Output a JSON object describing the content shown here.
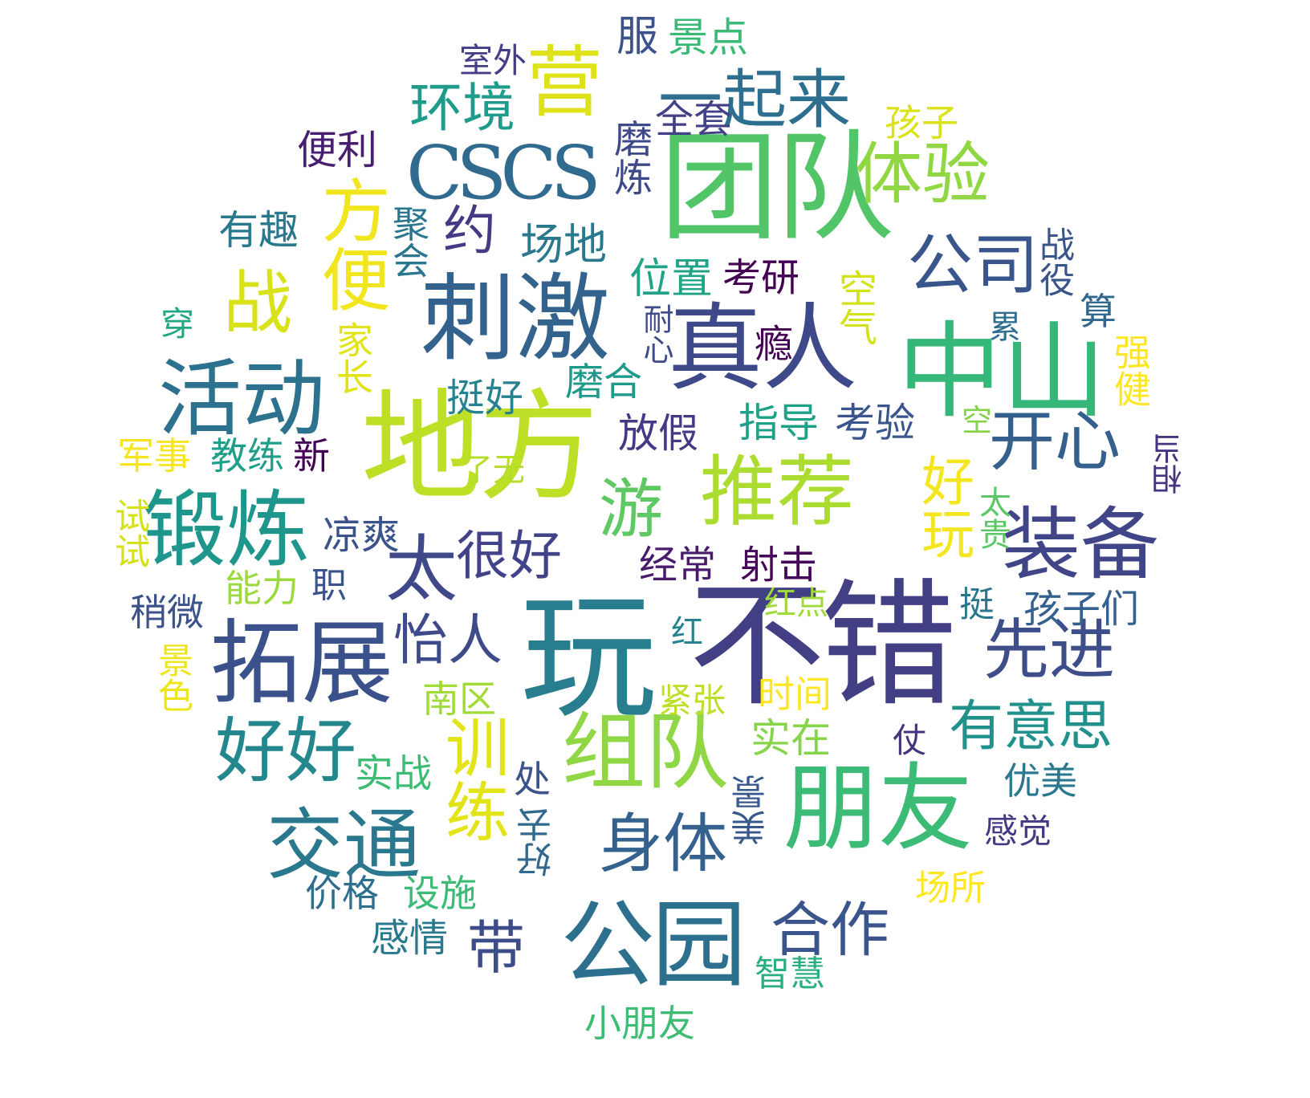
{
  "words": [
    {
      "text": "不错",
      "color": "#423f85"
    },
    {
      "text": "玩",
      "color": "#287d8e"
    },
    {
      "text": "地方",
      "color": "#bddf26"
    },
    {
      "text": "团队",
      "color": "#52c569"
    },
    {
      "text": "中山",
      "color": "#35b779"
    },
    {
      "text": "真人",
      "color": "#3e4989"
    },
    {
      "text": "刺激",
      "color": "#33638d"
    },
    {
      "text": "朋友",
      "color": "#3bbb75"
    },
    {
      "text": "公园",
      "color": "#2d708e"
    },
    {
      "text": "活动",
      "color": "#2c728e"
    },
    {
      "text": "锻炼",
      "color": "#1f968b"
    },
    {
      "text": "拓展",
      "color": "#3b518b"
    },
    {
      "text": "推荐",
      "color": "#addc30"
    },
    {
      "text": "组队",
      "color": "#8fd744"
    },
    {
      "text": "装备",
      "color": "#404588"
    },
    {
      "text": "交通",
      "color": "#2a788e"
    },
    {
      "text": "CSCS",
      "color": "#306a8e"
    },
    {
      "text": "营",
      "color": "#dde318"
    },
    {
      "text": "一起来",
      "color": "#2e6e8e"
    },
    {
      "text": "体验",
      "color": "#90d743"
    },
    {
      "text": "战",
      "color": "#d8e219"
    },
    {
      "text": "方便",
      "color": "#f1e51d"
    },
    {
      "text": "公司",
      "color": "#39568c"
    },
    {
      "text": "开心",
      "color": "#355f8d"
    },
    {
      "text": "好玩",
      "color": "#f4e61e"
    },
    {
      "text": "先进",
      "color": "#3d4e8a"
    },
    {
      "text": "游",
      "color": "#5ec962"
    },
    {
      "text": "太",
      "color": "#3f4889"
    },
    {
      "text": "很好",
      "color": "#414287"
    },
    {
      "text": "好好",
      "color": "#24878e"
    },
    {
      "text": "训练",
      "color": "#e2e418"
    },
    {
      "text": "身体",
      "color": "#34618d"
    },
    {
      "text": "带",
      "color": "#3d4d8a"
    },
    {
      "text": "合作",
      "color": "#39558c"
    },
    {
      "text": "有意思",
      "color": "#21918c"
    },
    {
      "text": "怡人",
      "color": "#3e4a89"
    },
    {
      "text": "环境",
      "color": "#1e9b8a"
    },
    {
      "text": "约",
      "color": "#443983"
    },
    {
      "text": "场地",
      "color": "#2a788e"
    },
    {
      "text": "便利",
      "color": "#481f70"
    },
    {
      "text": "有趣",
      "color": "#2a788e"
    },
    {
      "text": "聚会",
      "color": "#2a768e"
    },
    {
      "text": "室外",
      "color": "#433e85"
    },
    {
      "text": "服",
      "color": "#3b528b"
    },
    {
      "text": "景点",
      "color": "#3aba76"
    },
    {
      "text": "全套",
      "color": "#424086"
    },
    {
      "text": "磨炼",
      "color": "#3e4989"
    },
    {
      "text": "孩子",
      "color": "#dae319"
    },
    {
      "text": "位置",
      "color": "#20a386"
    },
    {
      "text": "考研",
      "color": "#440154"
    },
    {
      "text": "耐心",
      "color": "#3e4a89"
    },
    {
      "text": "空气",
      "color": "#d2e21b"
    },
    {
      "text": "战役",
      "color": "#3a548c"
    },
    {
      "text": "算",
      "color": "#31688e"
    },
    {
      "text": "瘾",
      "color": "#440154"
    },
    {
      "text": "累",
      "color": "#2e6e8e"
    },
    {
      "text": "强健",
      "color": "#fde725"
    },
    {
      "text": "家长",
      "color": "#dfe318"
    },
    {
      "text": "穿",
      "color": "#22a785"
    },
    {
      "text": "挺好",
      "color": "#26828e"
    },
    {
      "text": "磨合",
      "color": "#1f9a8a"
    },
    {
      "text": "指导",
      "color": "#1fa188"
    },
    {
      "text": "考验",
      "color": "#3a548c"
    },
    {
      "text": "放假",
      "color": "#443983"
    },
    {
      "text": "空",
      "color": "#84d44b"
    },
    {
      "text": "相当",
      "color": "#463480"
    },
    {
      "text": "军事",
      "color": "#f6e620"
    },
    {
      "text": "教练",
      "color": "#1f9e89"
    },
    {
      "text": "新",
      "color": "#440154"
    },
    {
      "text": "了无",
      "color": "#b5de2b"
    },
    {
      "text": "太贵",
      "color": "#5ac864"
    },
    {
      "text": "试试",
      "color": "#d5e21a"
    },
    {
      "text": "凉爽",
      "color": "#3b528b"
    },
    {
      "text": "能力",
      "color": "#9bd93c"
    },
    {
      "text": "职",
      "color": "#3b528b"
    },
    {
      "text": "经常",
      "color": "#481b6d"
    },
    {
      "text": "射击",
      "color": "#450559"
    },
    {
      "text": "稍微",
      "color": "#3b528b"
    },
    {
      "text": "红点",
      "color": "#a0da39"
    },
    {
      "text": "挺",
      "color": "#2a768e"
    },
    {
      "text": "孩子们",
      "color": "#34618d"
    },
    {
      "text": "红",
      "color": "#26828e"
    },
    {
      "text": "景色",
      "color": "#ecE51b"
    },
    {
      "text": "南区",
      "color": "#a2da37"
    },
    {
      "text": "紧张",
      "color": "#bddf26"
    },
    {
      "text": "时间",
      "color": "#fde725"
    },
    {
      "text": "实在",
      "color": "#86d549"
    },
    {
      "text": "仗",
      "color": "#46327e"
    },
    {
      "text": "实战",
      "color": "#3dbc74"
    },
    {
      "text": "处",
      "color": "#3b528b"
    },
    {
      "text": "优美",
      "color": "#2a788e"
    },
    {
      "text": "美景",
      "color": "#38588c"
    },
    {
      "text": "好去",
      "color": "#31688e"
    },
    {
      "text": "感觉",
      "color": "#443983"
    },
    {
      "text": "价格",
      "color": "#2e6f8e"
    },
    {
      "text": "设施",
      "color": "#3bbb75"
    },
    {
      "text": "场所",
      "color": "#fde725"
    },
    {
      "text": "感情",
      "color": "#2a788e"
    },
    {
      "text": "智慧",
      "color": "#29af7f"
    },
    {
      "text": "小朋友",
      "color": "#3dbc74"
    }
  ]
}
